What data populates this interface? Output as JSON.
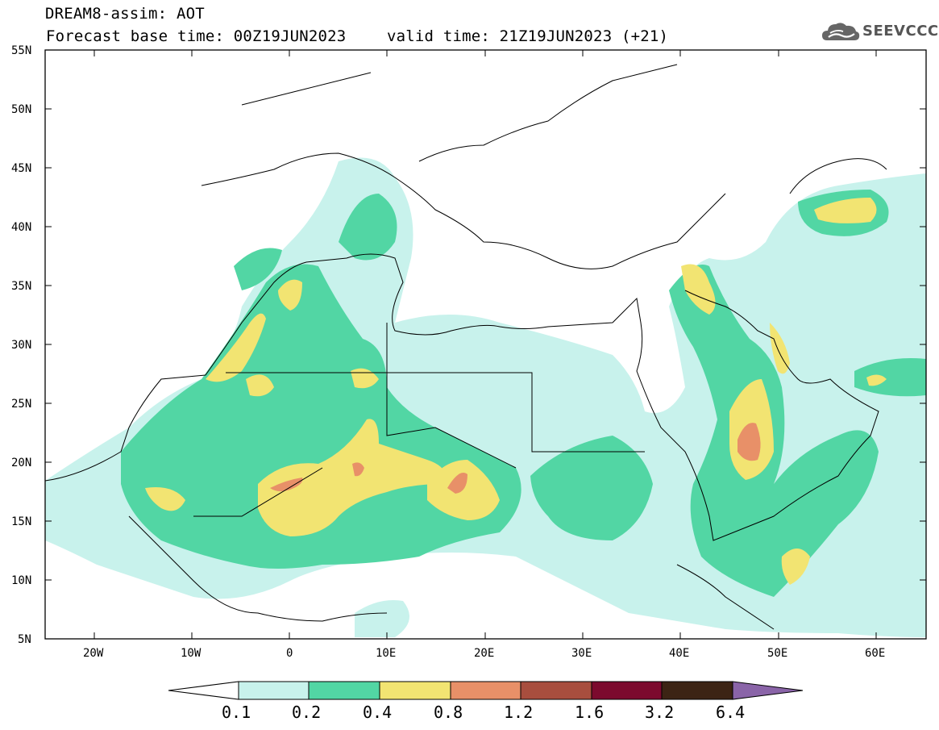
{
  "header": {
    "title": "DREAM8-assim: AOT",
    "base_time": "Forecast base time: 00Z19JUN2023",
    "valid_time": "valid time: 21Z19JUN2023 (+21)"
  },
  "logo": {
    "text": "SEEVCCC"
  },
  "map": {
    "lon_range": [
      -25,
      65
    ],
    "lat_range": [
      5,
      55
    ],
    "lat_ticks": [
      "55N",
      "50N",
      "45N",
      "40N",
      "35N",
      "30N",
      "25N",
      "20N",
      "15N",
      "10N",
      "5N"
    ],
    "lon_ticks": [
      "20W",
      "10W",
      "0",
      "10E",
      "20E",
      "30E",
      "40E",
      "50E",
      "60E"
    ]
  },
  "colorbar": {
    "labels": [
      "0.1",
      "0.2",
      "0.4",
      "0.8",
      "1.2",
      "1.6",
      "3.2",
      "6.4"
    ],
    "colors": [
      "#ffffff",
      "#c8f2ec",
      "#52d6a4",
      "#f2e472",
      "#e89068",
      "#a84e3e",
      "#7c0a2e",
      "#3c2414",
      "#8a64a8"
    ]
  },
  "palette": {
    "lev1": "#c8f2ec",
    "lev2": "#52d6a4",
    "lev3": "#f2e472",
    "lev4": "#e89068"
  }
}
